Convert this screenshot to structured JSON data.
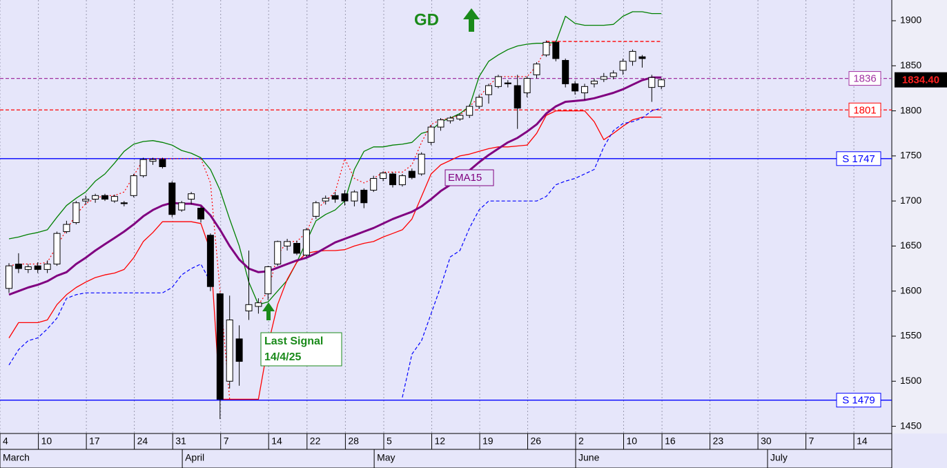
{
  "chart_data": {
    "type": "candlestick",
    "categories": [
      "4",
      null,
      null,
      null,
      "10",
      null,
      null,
      null,
      null,
      "17",
      null,
      null,
      null,
      null,
      "24",
      null,
      null,
      null,
      "31",
      null,
      null,
      null,
      null,
      "7",
      null,
      null,
      null,
      null,
      "14",
      null,
      null,
      null,
      "22",
      null,
      null,
      null,
      "28",
      null,
      null,
      null,
      "5",
      null,
      null,
      null,
      null,
      "12",
      null,
      null,
      null,
      null,
      "19",
      null,
      null,
      null,
      null,
      "26",
      null,
      null,
      null,
      null,
      "2",
      null,
      null,
      null,
      null,
      "10",
      null,
      null,
      null,
      "16",
      null,
      null,
      null,
      null,
      "23",
      null,
      null,
      null,
      null,
      "30",
      null,
      null,
      null,
      null,
      "7",
      null,
      null,
      null,
      null,
      "14",
      null,
      null,
      null
    ],
    "months": [
      "March",
      null,
      null,
      null,
      null,
      null,
      null,
      null,
      null,
      null,
      null,
      null,
      null,
      null,
      null,
      null,
      null,
      null,
      null,
      "April",
      null,
      null,
      null,
      null,
      null,
      null,
      null,
      null,
      null,
      null,
      null,
      null,
      null,
      null,
      null,
      null,
      null,
      null,
      null,
      "May",
      null,
      null,
      null,
      null,
      null,
      null,
      null,
      null,
      null,
      null,
      null,
      null,
      null,
      null,
      null,
      null,
      null,
      null,
      null,
      null,
      "June",
      null,
      null,
      null,
      null,
      null,
      null,
      null,
      null,
      null,
      null,
      null,
      null,
      null,
      null,
      null,
      null,
      null,
      null,
      null,
      "July",
      null,
      null,
      null,
      null,
      null,
      null,
      null,
      null,
      null,
      null,
      null,
      null
    ],
    "ohlc": {
      "open": [
        1603,
        1630,
        1624,
        1628,
        1624,
        1630,
        1666,
        1676,
        1700,
        1702,
        1706,
        1700,
        1698,
        1706,
        1728,
        1744,
        1746,
        1720,
        1690,
        1702,
        1692,
        1662,
        1597,
        1500,
        1547,
        1578,
        1583,
        1597,
        1630,
        1650,
        1653,
        1640,
        1683,
        1700,
        1706,
        1708,
        1700,
        1712,
        1712,
        1725,
        1730,
        1718,
        1733,
        1730,
        1765,
        1782,
        1789,
        1791,
        1795,
        1805,
        1818,
        1827,
        1831,
        1828,
        1820,
        1840,
        1862,
        1876,
        1856,
        1830,
        1820,
        1830,
        1835,
        1838,
        1845,
        1855,
        1860,
        1826,
        1827,
        null,
        null,
        null,
        null,
        null,
        null,
        null,
        null,
        null,
        null,
        null,
        null,
        null,
        null,
        null,
        null,
        null,
        null,
        null,
        null,
        null,
        null,
        null,
        null
      ],
      "high": [
        1631,
        1642,
        1630,
        1632,
        1634,
        1666,
        1678,
        1700,
        1706,
        1708,
        1708,
        1707,
        1700,
        1730,
        1748,
        1748,
        1748,
        1722,
        1700,
        1710,
        1694,
        1664,
        1598,
        1595,
        1562,
        1645,
        1592,
        1628,
        1656,
        1658,
        1656,
        1670,
        1700,
        1706,
        1710,
        1712,
        1712,
        1714,
        1728,
        1733,
        1732,
        1730,
        1736,
        1754,
        1784,
        1792,
        1794,
        1797,
        1807,
        1818,
        1830,
        1840,
        1834,
        1840,
        1838,
        1854,
        1878,
        1878,
        1858,
        1833,
        1830,
        1836,
        1842,
        1845,
        1858,
        1868,
        1862,
        1840,
        1836,
        null,
        null,
        null,
        null,
        null,
        null,
        null,
        null,
        null,
        null,
        null,
        null,
        null,
        null,
        null,
        null,
        null,
        null,
        null,
        null,
        null,
        null,
        null,
        null
      ],
      "low": [
        1598,
        1620,
        1620,
        1620,
        1620,
        1628,
        1664,
        1674,
        1696,
        1698,
        1700,
        1698,
        1694,
        1704,
        1726,
        1740,
        1736,
        1682,
        1688,
        1696,
        1676,
        1600,
        1458,
        1492,
        1495,
        1568,
        1575,
        1590,
        1628,
        1645,
        1640,
        1638,
        1680,
        1696,
        1698,
        1695,
        1694,
        1692,
        1710,
        1722,
        1715,
        1716,
        1724,
        1728,
        1762,
        1778,
        1786,
        1789,
        1792,
        1802,
        1808,
        1825,
        1826,
        1780,
        1815,
        1836,
        1860,
        1855,
        1826,
        1818,
        1812,
        1826,
        1832,
        1835,
        1840,
        1850,
        1848,
        1810,
        1824,
        null,
        null,
        null,
        null,
        null,
        null,
        null,
        null,
        null,
        null,
        null,
        null,
        null,
        null,
        null,
        null,
        null,
        null,
        null,
        null,
        null,
        null,
        null,
        null
      ],
      "close": [
        1628,
        1625,
        1627,
        1624,
        1630,
        1664,
        1674,
        1698,
        1702,
        1706,
        1702,
        1705,
        1697,
        1728,
        1746,
        1746,
        1738,
        1685,
        1698,
        1708,
        1680,
        1605,
        1480,
        1568,
        1522,
        1585,
        1587,
        1627,
        1655,
        1655,
        1642,
        1668,
        1698,
        1703,
        1702,
        1700,
        1710,
        1698,
        1725,
        1731,
        1718,
        1728,
        1726,
        1752,
        1782,
        1790,
        1792,
        1795,
        1805,
        1815,
        1828,
        1838,
        1830,
        1803,
        1836,
        1852,
        1876,
        1858,
        1830,
        1822,
        1827,
        1833,
        1838,
        1842,
        1855,
        1866,
        1858,
        1837,
        1834.4,
        null,
        null,
        null,
        null,
        null,
        null,
        null,
        null,
        null,
        null,
        null,
        null,
        null,
        null,
        null,
        null,
        null,
        null,
        null,
        null,
        null,
        null,
        null,
        null
      ]
    },
    "lines": [
      {
        "color": "#008000",
        "style": "solid",
        "width": 1.3,
        "values": [
          1658,
          1660,
          1663,
          1665,
          1668,
          1682,
          1695,
          1703,
          1710,
          1722,
          1730,
          1742,
          1755,
          1763,
          1766,
          1767,
          1765,
          1762,
          1756,
          1753,
          1748,
          1735,
          1712,
          1680,
          1650,
          1610,
          1585,
          1588,
          1600,
          1612,
          1632,
          1655,
          1678,
          1685,
          1690,
          1700,
          1735,
          1755,
          1760,
          1760,
          1762,
          1763,
          1765,
          1775,
          1778,
          1788,
          1792,
          1797,
          1805,
          1838,
          1855,
          1862,
          1868,
          1872,
          1874,
          1875,
          1875,
          1876,
          1905,
          1897,
          1895,
          1895,
          1895,
          1896,
          1905,
          1910,
          1910,
          1908,
          1908,
          null,
          null,
          null,
          null,
          null,
          null,
          null,
          null,
          null,
          null,
          null,
          null,
          null,
          null,
          null,
          null,
          null,
          null,
          null,
          null,
          null,
          null,
          null,
          null
        ]
      },
      {
        "color": "#ff0000",
        "style": "solid",
        "width": 1.3,
        "values": [
          1548,
          1565,
          1565,
          1565,
          1568,
          1585,
          1596,
          1604,
          1610,
          1615,
          1618,
          1620,
          1624,
          1637,
          1655,
          1665,
          1677,
          1677,
          1677,
          1677,
          1675,
          1645,
          1480,
          1480,
          1480,
          1480,
          1480,
          1540,
          1585,
          1613,
          1632,
          1642,
          1644,
          1645,
          1645,
          1646,
          1650,
          1653,
          1655,
          1660,
          1664,
          1668,
          1680,
          1705,
          1730,
          1740,
          1745,
          1750,
          1752,
          1755,
          1758,
          1760,
          1760,
          1761,
          1762,
          1775,
          1795,
          1800,
          1800,
          1800,
          1800,
          1788,
          1768,
          1775,
          1783,
          1790,
          1793,
          1793,
          1793,
          null,
          null,
          null,
          null,
          null,
          null,
          null,
          null,
          null,
          null,
          null,
          null,
          null,
          null,
          null,
          null,
          null,
          null,
          null,
          null,
          null,
          null,
          null,
          null
        ]
      },
      {
        "color": "#0000ff",
        "style": "dashed",
        "width": 1.2,
        "values": [
          1518,
          1535,
          1545,
          1548,
          1558,
          1570,
          1592,
          1596,
          1598,
          1598,
          1598,
          1598,
          1598,
          1598,
          1598,
          1598,
          1598,
          1604,
          1618,
          1625,
          1630,
          1610,
          null,
          null,
          null,
          null,
          null,
          null,
          null,
          null,
          null,
          null,
          null,
          null,
          null,
          null,
          null,
          null,
          null,
          null,
          null,
          1482,
          1530,
          1545,
          1575,
          1605,
          1638,
          1645,
          1670,
          1690,
          1700,
          1700,
          1700,
          1700,
          1700,
          1700,
          1705,
          1718,
          1722,
          1725,
          1730,
          1735,
          1760,
          1778,
          1786,
          1788,
          1792,
          1800,
          1803,
          null,
          null,
          null,
          null,
          null,
          null,
          null,
          null,
          null,
          null,
          null,
          null,
          null,
          null,
          null,
          null,
          null,
          null,
          null,
          null,
          null,
          null,
          null,
          null
        ]
      },
      {
        "color": "#ff0000",
        "style": "dotted",
        "width": 1.2,
        "values": [
          1628,
          1630,
          1630,
          1630,
          1632,
          1650,
          1668,
          1685,
          1697,
          1703,
          1706,
          1706,
          1710,
          1728,
          1746,
          1747,
          1747,
          1747,
          1747,
          1747,
          1747,
          1720,
          1600,
          1480,
          null,
          null,
          1585,
          1600,
          1640,
          1655,
          1655,
          1665,
          1690,
          1700,
          1710,
          1747,
          1725,
          1720,
          1725,
          1732,
          1732,
          1732,
          1740,
          1765,
          1785,
          1790,
          1792,
          1795,
          1805,
          1815,
          1828,
          1838,
          1838,
          1838,
          1838,
          1850,
          1870,
          1877,
          null,
          null,
          null,
          null,
          null,
          null,
          null,
          null,
          null,
          null,
          null,
          null,
          null,
          null,
          null,
          null,
          null,
          null,
          null,
          null,
          null,
          null,
          null,
          null,
          null,
          null,
          null,
          null,
          null,
          null,
          null,
          null,
          null,
          null,
          null
        ]
      },
      {
        "color": "#800080",
        "style": "solid",
        "width": 3,
        "values": [
          1596,
          1600,
          1604,
          1607,
          1611,
          1617,
          1621,
          1630,
          1637,
          1645,
          1652,
          1659,
          1666,
          1674,
          1683,
          1690,
          1695,
          1698,
          1697,
          1697,
          1695,
          1684,
          1668,
          1650,
          1635,
          1625,
          1621,
          1622,
          1626,
          1630,
          1634,
          1637,
          1642,
          1648,
          1654,
          1658,
          1662,
          1666,
          1670,
          1675,
          1680,
          1684,
          1688,
          1694,
          1702,
          1711,
          1718,
          1726,
          1734,
          1743,
          1751,
          1758,
          1765,
          1770,
          1777,
          1785,
          1797,
          1805,
          1810,
          1811,
          1812,
          1814,
          1817,
          1820,
          1824,
          1829,
          1834,
          1837,
          1837,
          null,
          null,
          null,
          null,
          null,
          null,
          null,
          null,
          null,
          null,
          null,
          null,
          null,
          null,
          null,
          null,
          null,
          null,
          null,
          null,
          null,
          null,
          null,
          null
        ]
      }
    ],
    "levels": [
      {
        "value": 1877,
        "color": "#ff0000",
        "style": "dashed"
      },
      {
        "value": 1836,
        "color": "#a030a0",
        "style": "dashed",
        "tag": true
      },
      {
        "value": 1801,
        "color": "#ff0000",
        "style": "dashed",
        "tag": true
      },
      {
        "value": 1747,
        "label": "S 1747",
        "color": "#0000ff",
        "style": "solid",
        "tag": true
      },
      {
        "value": 1479,
        "label": "S 1479",
        "color": "#0000ff",
        "style": "solid",
        "tag": true
      }
    ],
    "last": {
      "value": 1834.4,
      "label": "1834.40"
    },
    "ylim": [
      1442,
      1923
    ],
    "yticks": [
      1450,
      1500,
      1550,
      1600,
      1650,
      1700,
      1750,
      1800,
      1850,
      1900
    ],
    "annotations": {
      "gd": "GD",
      "ema": "EMA15",
      "signal": [
        "Last Signal",
        "14/4/25"
      ]
    }
  }
}
